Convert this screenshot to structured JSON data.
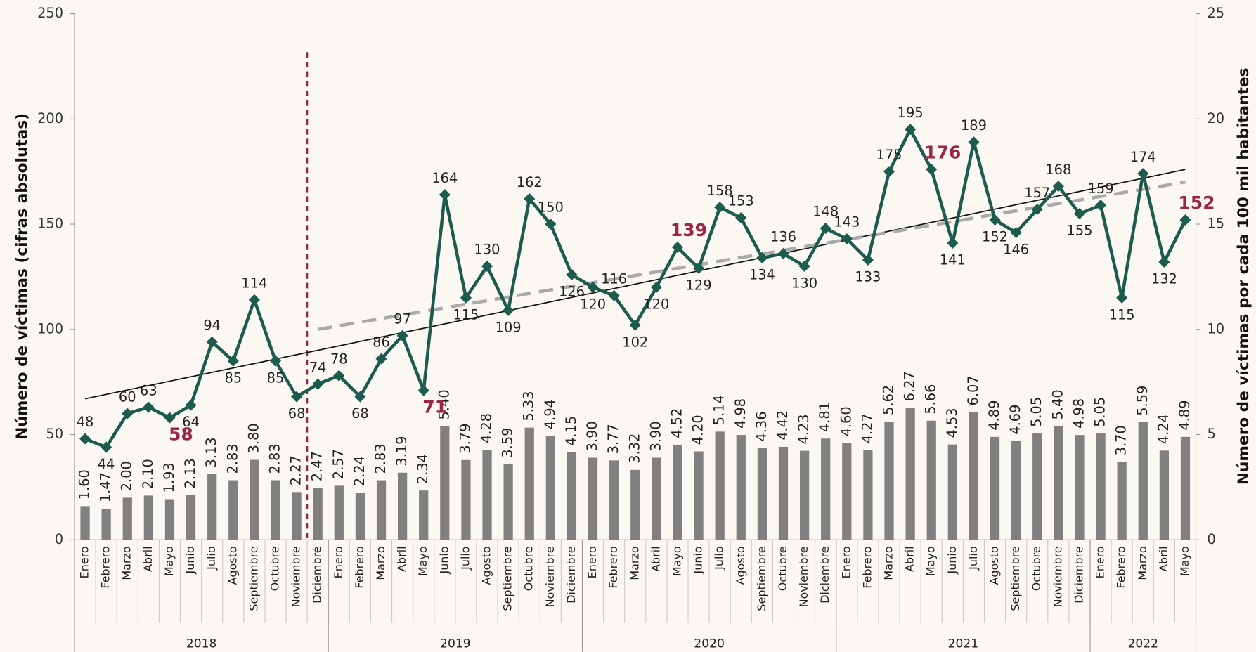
{
  "chart_data": {
    "type": "combo",
    "y_label": "Número de víctimas (cifras absolutas)",
    "y2_label": "Número de víctimas por cada 100 mil habitantes",
    "categories": [
      "Enero",
      "Febrero",
      "Marzo",
      "Abril",
      "Mayo",
      "Junio",
      "Julio",
      "Agosto",
      "Septiembre",
      "Octubre",
      "Noviembre",
      "Diciembre",
      "Enero",
      "Febrero",
      "Marzo",
      "Abril",
      "Mayo",
      "Junio",
      "Julio",
      "Agosto",
      "Septiembre",
      "Octubre",
      "Noviembre",
      "Diciembre",
      "Enero",
      "Febrero",
      "Marzo",
      "Abril",
      "Mayo",
      "Junio",
      "Julio",
      "Agosto",
      "Septiembre",
      "Octubre",
      "Noviembre",
      "Diciembre",
      "Enero",
      "Febrero",
      "Marzo",
      "Abril",
      "Mayo",
      "Junio",
      "Julio",
      "Agosto",
      "Septiembre",
      "Octubre",
      "Noviembre",
      "Diciembre",
      "Enero",
      "Febrero",
      "Marzo",
      "Abril",
      "Mayo"
    ],
    "groups": [
      {
        "label": "2018",
        "count": 12
      },
      {
        "label": "2019",
        "count": 12
      },
      {
        "label": "2020",
        "count": 12
      },
      {
        "label": "2021",
        "count": 12
      },
      {
        "label": "2022",
        "count": 5
      }
    ],
    "series": [
      {
        "type": "bar",
        "axis": "y2",
        "color": "#808080",
        "values": [
          1.6,
          1.47,
          2,
          2.1,
          1.93,
          2.13,
          3.13,
          2.83,
          3.8,
          2.83,
          2.27,
          2.47,
          2.57,
          2.24,
          2.83,
          3.19,
          2.34,
          5.4,
          3.79,
          4.28,
          3.59,
          5.33,
          4.94,
          4.15,
          3.9,
          3.77,
          3.32,
          3.9,
          4.52,
          4.2,
          5.14,
          4.98,
          4.36,
          4.42,
          4.23,
          4.81,
          4.6,
          4.27,
          5.62,
          6.27,
          5.66,
          4.53,
          6.07,
          4.89,
          4.69,
          5.05,
          5.4,
          4.98,
          5.05,
          3.7,
          5.59,
          4.24,
          4.89
        ],
        "value_labels": [
          "1.60",
          "1.47",
          "2.00",
          "2.10",
          "1.93",
          "2.13",
          "3.13",
          "2.83",
          "3.80",
          "2.83",
          "2.27",
          "2.47",
          "2.57",
          "2.24",
          "2.83",
          "3.19",
          "2.34",
          "5.40",
          "3.79",
          "4.28",
          "3.59",
          "5.33",
          "4.94",
          "4.15",
          "3.90",
          "3.77",
          "3.32",
          "3.90",
          "4.52",
          "4.20",
          "5.14",
          "4.98",
          "4.36",
          "4.42",
          "4.23",
          "4.81",
          "4.60",
          "4.27",
          "5.62",
          "6.27",
          "5.66",
          "4.53",
          "6.07",
          "4.89",
          "4.69",
          "5.05",
          "5.40",
          "4.98",
          "5.05",
          "3.70",
          "5.59",
          "4.24",
          "4.89"
        ]
      },
      {
        "type": "line",
        "axis": "y",
        "color": "#1e5b4f",
        "values": [
          48,
          44,
          60,
          63,
          58,
          64,
          94,
          85,
          114,
          85,
          68,
          74,
          78,
          68,
          86,
          97,
          71,
          164,
          115,
          130,
          109,
          162,
          150,
          126,
          120,
          116,
          102,
          120,
          139,
          129,
          158,
          153,
          134,
          136,
          130,
          148,
          143,
          133,
          175,
          195,
          176,
          141,
          189,
          152,
          146,
          157,
          168,
          155,
          159,
          115,
          174,
          132,
          152
        ]
      }
    ],
    "highlight": {
      "color": "#9d2449",
      "indices": [
        4,
        16,
        28,
        40,
        52
      ]
    },
    "trendlines": [
      {
        "color": "#111111",
        "dashed": false,
        "points": [
          0,
          52
        ],
        "values": [
          67,
          176
        ]
      },
      {
        "color": "#aaaaaa",
        "dashed": true,
        "points": [
          11,
          52
        ],
        "values": [
          100,
          170
        ]
      }
    ],
    "marker_line": {
      "after_index": 10,
      "color": "#9d2449"
    },
    "ylim": [
      0,
      250
    ],
    "yticks": [
      0,
      50,
      100,
      150,
      200,
      250
    ],
    "y2lim": [
      0,
      25
    ],
    "y2ticks": [
      0,
      5,
      10,
      15,
      20,
      25
    ]
  }
}
